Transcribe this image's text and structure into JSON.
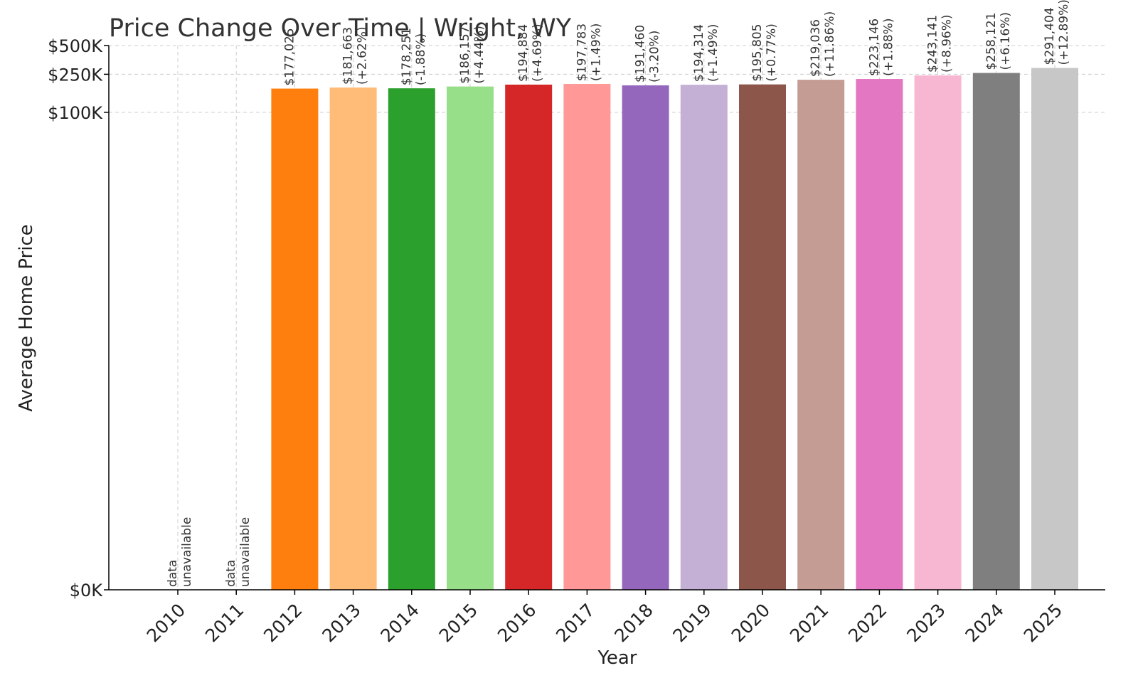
{
  "chart_data": {
    "type": "bar",
    "title": "Price Change Over Time | Wright, WY",
    "xlabel": "Year",
    "ylabel": "Average Home Price",
    "scale": "symlog",
    "ylim": [
      0,
      500000
    ],
    "yticks": [
      {
        "value": 0,
        "label": "$0K"
      },
      {
        "value": 100000,
        "label": "$100K"
      },
      {
        "value": 250000,
        "label": "$250K"
      },
      {
        "value": 500000,
        "label": "$500K"
      }
    ],
    "grid": true,
    "categories": [
      "2010",
      "2011",
      "2012",
      "2013",
      "2014",
      "2015",
      "2016",
      "2017",
      "2018",
      "2019",
      "2020",
      "2021",
      "2022",
      "2023",
      "2024",
      "2025"
    ],
    "values": [
      null,
      null,
      177025,
      181663,
      178251,
      186157,
      194884,
      197783,
      191460,
      194314,
      195805,
      219036,
      223146,
      243141,
      258121,
      291404
    ],
    "value_labels": [
      "data",
      "data",
      "$177,025",
      "$181,663",
      "$178,251",
      "$186,157",
      "$194,884",
      "$197,783",
      "$191,460",
      "$194,314",
      "$195,805",
      "$219,036",
      "$223,146",
      "$243,141",
      "$258,121",
      "$291,404"
    ],
    "change_labels": [
      "unavailable",
      "unavailable",
      "",
      "(+2.62%)",
      "(-1.88%)",
      "(+4.44%)",
      "(+4.69%)",
      "(+1.49%)",
      "(-3.20%)",
      "(+1.49%)",
      "(+0.77%)",
      "(+11.86%)",
      "(+1.88%)",
      "(+8.96%)",
      "(+6.16%)",
      "(+12.89%)"
    ],
    "colors": [
      "#1f77b4",
      "#aec7e8",
      "#ff7f0e",
      "#ffbb78",
      "#2ca02c",
      "#98df8a",
      "#d62728",
      "#ff9896",
      "#9467bd",
      "#c5b0d5",
      "#8c564b",
      "#c49c94",
      "#e377c2",
      "#f7b6d2",
      "#7f7f7f",
      "#c7c7c7"
    ]
  }
}
